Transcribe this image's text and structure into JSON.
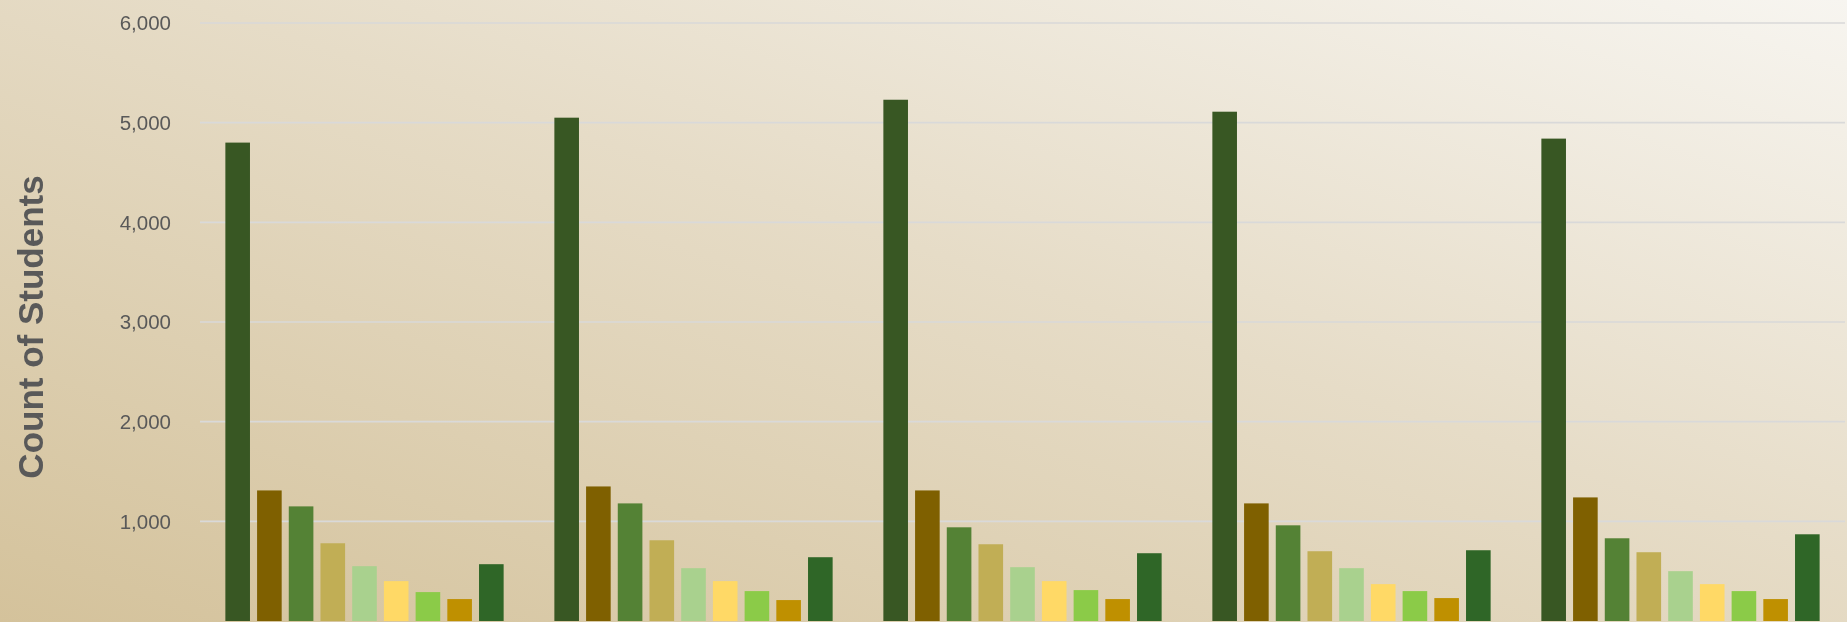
{
  "chart_data": {
    "type": "bar",
    "ylabel": "Count of Students",
    "categories": [
      null,
      null,
      null,
      null,
      null
    ],
    "series": [
      {
        "color": "#385723",
        "values": [
          4800,
          5050,
          5230,
          5110,
          4840
        ]
      },
      {
        "color": "#7f6000",
        "values": [
          1310,
          1350,
          1310,
          1180,
          1240
        ]
      },
      {
        "color": "#548235",
        "values": [
          1150,
          1180,
          940,
          960,
          830
        ]
      },
      {
        "color": "#c1ae55",
        "values": [
          780,
          810,
          770,
          700,
          690
        ]
      },
      {
        "color": "#a9d18e",
        "values": [
          550,
          530,
          540,
          530,
          500
        ]
      },
      {
        "color": "#ffd966",
        "values": [
          400,
          400,
          400,
          370,
          370
        ]
      },
      {
        "color": "#8bcb48",
        "values": [
          290,
          300,
          310,
          300,
          300
        ]
      },
      {
        "color": "#bf9000",
        "values": [
          220,
          210,
          220,
          230,
          220
        ]
      },
      {
        "color": "#2f6627",
        "values": [
          570,
          640,
          680,
          710,
          870
        ]
      }
    ],
    "ylim": [
      0,
      6000
    ],
    "yticks": [
      {
        "value": 1000,
        "label": "1,000"
      },
      {
        "value": 2000,
        "label": "2,000"
      },
      {
        "value": 3000,
        "label": "3,000"
      },
      {
        "value": 4000,
        "label": "4,000"
      },
      {
        "value": 5000,
        "label": "5,000"
      },
      {
        "value": 6000,
        "label": "6,000"
      }
    ],
    "grid": "y"
  }
}
